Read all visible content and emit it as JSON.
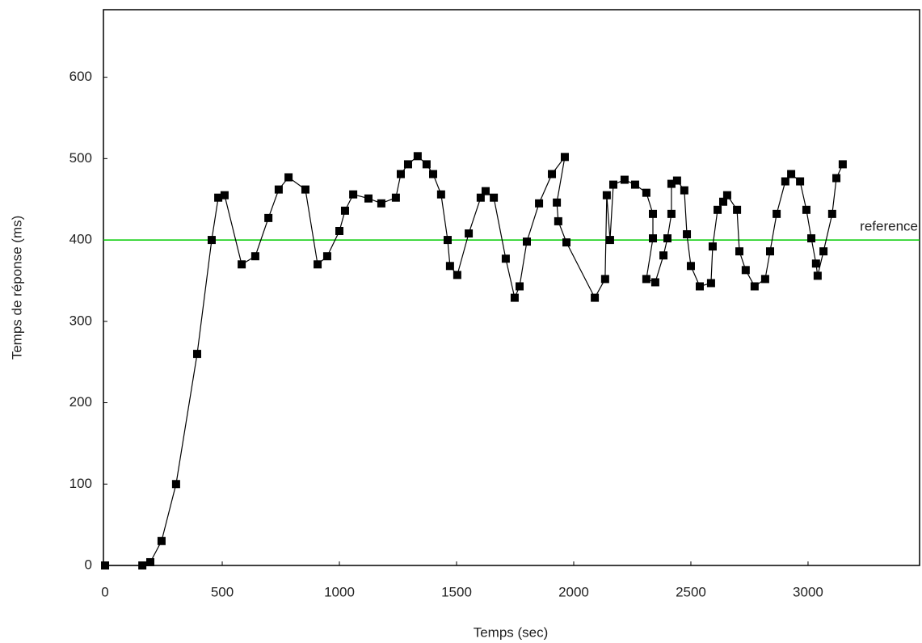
{
  "chart_data": {
    "type": "line",
    "x_label": "Temps (sec)",
    "y_label": "Temps de réponse (ms)",
    "xlim": [
      -7,
      3476
    ],
    "ylim": [
      0,
      683
    ],
    "xticks": [
      0,
      500,
      1000,
      1500,
      2000,
      2500,
      3000
    ],
    "yticks": [
      0,
      100,
      200,
      300,
      400,
      500,
      600
    ],
    "grid": false,
    "series": [
      {
        "color": "#000000",
        "x": [
          0,
          159,
          193,
          241,
          303,
          393,
          455,
          483,
          510,
          583,
          641,
          697,
          741,
          783,
          855,
          907,
          948,
          1000,
          1024,
          1059,
          1124,
          1179,
          1241,
          1262,
          1293,
          1334,
          1372,
          1400,
          1434,
          1462,
          1472,
          1503,
          1552,
          1603,
          1624,
          1659,
          1710,
          1748,
          1769,
          1800,
          1852,
          1907,
          1962,
          1928,
          1934,
          1969,
          2090,
          2134,
          2141,
          2155,
          2169,
          2217,
          2262,
          2310,
          2338,
          2338,
          2310,
          2348,
          2383,
          2400,
          2417,
          2417,
          2441,
          2472,
          2483,
          2500,
          2538,
          2586,
          2593,
          2614,
          2638,
          2655,
          2697,
          2707,
          2734,
          2772,
          2817,
          2838,
          2866,
          2903,
          2928,
          2966,
          2993,
          3014,
          3034,
          3041,
          3066,
          3103,
          3121,
          3148
        ],
        "values": [
          0,
          0,
          4,
          30,
          100,
          260,
          400,
          452,
          455,
          370,
          380,
          427,
          462,
          477,
          462,
          370,
          380,
          411,
          436,
          456,
          451,
          445,
          452,
          481,
          493,
          503,
          493,
          481,
          456,
          400,
          368,
          357,
          408,
          452,
          460,
          452,
          377,
          329,
          343,
          398,
          445,
          481,
          502,
          446,
          423,
          397,
          329,
          352,
          455,
          400,
          468,
          474,
          468,
          458,
          432,
          402,
          352,
          348,
          381,
          402,
          432,
          469,
          473,
          461,
          407,
          368,
          343,
          347,
          392,
          437,
          447,
          455,
          437,
          386,
          363,
          343,
          352,
          386,
          432,
          472,
          481,
          472,
          437,
          402,
          371,
          356,
          386,
          432,
          476,
          493
        ]
      }
    ],
    "reference": {
      "value": 400,
      "label": "reference",
      "color": "#00cc00"
    }
  }
}
